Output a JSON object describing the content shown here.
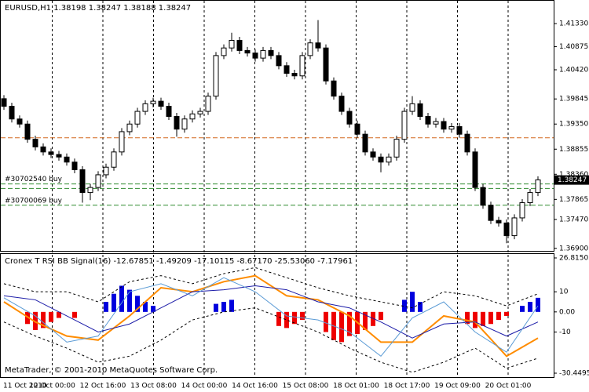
{
  "chart_data": [
    {
      "type": "candlestick",
      "title": "EURUSD,H1  1.38198 1.38247 1.38188 1.38247",
      "open": [
        1.3985,
        1.397,
        1.3945,
        1.3935,
        1.3905,
        1.389,
        1.388,
        1.3875,
        1.387,
        1.386,
        1.3845,
        1.38,
        1.381,
        1.3835,
        1.385,
        1.388,
        1.392,
        1.3935,
        1.396,
        1.3975,
        1.398,
        1.397,
        1.395,
        1.3925,
        1.3945,
        1.3955,
        1.396,
        1.399,
        1.407,
        1.4085,
        1.41,
        1.408,
        1.4075,
        1.4065,
        1.408,
        1.407,
        1.405,
        1.4035,
        1.403,
        1.407,
        1.4095,
        1.4085,
        1.402,
        1.399,
        1.396,
        1.3935,
        1.3915,
        1.388,
        1.387,
        1.386,
        1.387,
        1.3905,
        1.396,
        1.3975,
        1.395,
        1.3935,
        1.394,
        1.3925,
        1.393,
        1.3915,
        1.388,
        1.381,
        1.3775,
        1.3745,
        1.374,
        1.3715,
        1.375,
        1.378,
        1.38
      ],
      "high": [
        1.3992,
        1.3977,
        1.3952,
        1.3942,
        1.3912,
        1.3897,
        1.3887,
        1.3882,
        1.3877,
        1.3867,
        1.3852,
        1.3817,
        1.3842,
        1.3857,
        1.3887,
        1.3927,
        1.3942,
        1.3967,
        1.3982,
        1.3987,
        1.3987,
        1.3977,
        1.3957,
        1.3952,
        1.3962,
        1.3967,
        1.3997,
        1.4077,
        1.4092,
        1.4115,
        1.4107,
        1.4087,
        1.4082,
        1.4087,
        1.4087,
        1.4077,
        1.4057,
        1.4042,
        1.4077,
        1.4102,
        1.414,
        1.4092,
        1.4027,
        1.3997,
        1.3967,
        1.3942,
        1.3922,
        1.3887,
        1.3877,
        1.3877,
        1.3912,
        1.3967,
        1.399,
        1.3982,
        1.3957,
        1.3947,
        1.3947,
        1.3937,
        1.3937,
        1.3922,
        1.3887,
        1.3817,
        1.3782,
        1.3752,
        1.3747,
        1.3757,
        1.3787,
        1.3807,
        1.3832
      ],
      "low": [
        1.3963,
        1.3938,
        1.3928,
        1.3898,
        1.3883,
        1.3873,
        1.3868,
        1.3863,
        1.3853,
        1.3838,
        1.378,
        1.3785,
        1.3803,
        1.3828,
        1.3843,
        1.3873,
        1.3913,
        1.3928,
        1.3953,
        1.3968,
        1.3963,
        1.3943,
        1.391,
        1.3918,
        1.3938,
        1.3948,
        1.3953,
        1.3983,
        1.4063,
        1.4078,
        1.4073,
        1.4068,
        1.4058,
        1.4058,
        1.4063,
        1.4043,
        1.4028,
        1.4023,
        1.4023,
        1.4063,
        1.4078,
        1.4013,
        1.3983,
        1.3953,
        1.3928,
        1.3908,
        1.3873,
        1.3863,
        1.384,
        1.3853,
        1.3863,
        1.3898,
        1.3953,
        1.3943,
        1.3928,
        1.3928,
        1.3918,
        1.3918,
        1.3908,
        1.3873,
        1.3803,
        1.3768,
        1.3738,
        1.3733,
        1.37,
        1.3708,
        1.3743,
        1.3773,
        1.3793
      ],
      "close": [
        1.397,
        1.3945,
        1.3935,
        1.3905,
        1.389,
        1.388,
        1.3875,
        1.387,
        1.386,
        1.3845,
        1.38,
        1.381,
        1.3835,
        1.385,
        1.388,
        1.392,
        1.3935,
        1.396,
        1.3975,
        1.398,
        1.397,
        1.395,
        1.3925,
        1.3945,
        1.3955,
        1.396,
        1.399,
        1.407,
        1.4085,
        1.41,
        1.408,
        1.4075,
        1.4065,
        1.408,
        1.407,
        1.405,
        1.4035,
        1.403,
        1.407,
        1.4095,
        1.4085,
        1.402,
        1.399,
        1.396,
        1.3935,
        1.3915,
        1.388,
        1.387,
        1.386,
        1.387,
        1.3905,
        1.396,
        1.3975,
        1.395,
        1.3935,
        1.394,
        1.3925,
        1.393,
        1.3915,
        1.388,
        1.381,
        1.3775,
        1.3745,
        1.374,
        1.3715,
        1.375,
        1.378,
        1.38,
        1.3825
      ],
      "ylim": [
        1.3685,
        1.4178
      ],
      "yticks": [
        {
          "value": 1.4133,
          "label": "1.41330"
        },
        {
          "value": 1.40875,
          "label": "1.40875"
        },
        {
          "value": 1.4042,
          "label": "1.40420"
        },
        {
          "value": 1.39845,
          "label": "1.39845"
        },
        {
          "value": 1.3935,
          "label": "1.39350"
        },
        {
          "value": 1.38855,
          "label": "1.38855"
        },
        {
          "value": 1.3836,
          "label": "1.38360"
        },
        {
          "value": 1.37865,
          "label": "1.37865"
        },
        {
          "value": 1.3747,
          "label": "1.37470"
        },
        {
          "value": 1.369,
          "label": "1.36900"
        }
      ],
      "current_price": {
        "value": 1.38247,
        "label": "1.38247"
      },
      "level_lines": [
        {
          "price": 1.3908,
          "color": "#d2691e"
        },
        {
          "price": 1.3817,
          "color": "#2e8b2e",
          "label": "#30702540 buy"
        },
        {
          "price": 1.3808,
          "color": "#2e8b2e"
        },
        {
          "price": 1.3775,
          "color": "#2e8b2e",
          "label": "#30700069 buy"
        }
      ],
      "time_labels": [
        "11 Oct 2010",
        "12 Oct 00:00",
        "12 Oct 16:00",
        "13 Oct 08:00",
        "14 Oct 00:00",
        "14 Oct 16:00",
        "15 Oct 08:00",
        "18 Oct 01:00",
        "18 Oct 17:00",
        "19 Oct 09:00",
        "20 Oct 01:00"
      ]
    },
    {
      "type": "indicator",
      "title": "Cronex T RSI BB Signal(16) -12.67851 -1.49209 -17.10115 -8.67170 -25.53060 -7.17961",
      "histogram": [
        null,
        null,
        null,
        -6,
        -9,
        -8,
        -5,
        -3,
        null,
        -3,
        null,
        null,
        null,
        5,
        9,
        13,
        11,
        8,
        5,
        3,
        null,
        null,
        null,
        null,
        null,
        null,
        null,
        4,
        5,
        6,
        null,
        null,
        null,
        null,
        null,
        -7,
        -8,
        -6,
        -4,
        null,
        null,
        -10,
        -14,
        -15,
        -12,
        -11,
        -9,
        -7,
        -4,
        null,
        null,
        6,
        10,
        5,
        null,
        null,
        null,
        null,
        null,
        -6,
        -8,
        -7,
        -6,
        -4,
        -2,
        null,
        3,
        5,
        7
      ],
      "positive_color": "#0000dd",
      "negative_color": "#ee0000",
      "series": [
        {
          "color": "#ff8c00",
          "width": 2,
          "dash": false,
          "values": [
            5,
            -5,
            -12,
            -14,
            -2,
            12,
            10,
            15,
            18,
            8,
            6,
            -2,
            -15,
            -15,
            -2,
            -5,
            -22,
            -13
          ]
        },
        {
          "color": "#1c1ca8",
          "width": 1,
          "dash": false,
          "values": [
            8,
            6,
            -2,
            -10,
            -6,
            2,
            10,
            11,
            13,
            11,
            5,
            2,
            -5,
            -13,
            -6,
            -5,
            -12,
            -5
          ]
        },
        {
          "color": "#5b9bd5",
          "width": 1,
          "dash": false,
          "values": [
            7,
            -2,
            -15,
            -12,
            10,
            14,
            8,
            17,
            10,
            -2,
            -4,
            -10,
            -22,
            -3,
            5,
            -10,
            -20,
            3
          ]
        },
        {
          "color": "#000000",
          "width": 1,
          "dash": true,
          "values": [
            14,
            10,
            10,
            5,
            15,
            18,
            14,
            19,
            22,
            17,
            12,
            8,
            5,
            2,
            10,
            8,
            3,
            9
          ]
        },
        {
          "color": "#000000",
          "width": 1,
          "dash": true,
          "values": [
            -5,
            -12,
            -18,
            -25,
            -22,
            -14,
            -4,
            0,
            2,
            -4,
            -10,
            -18,
            -25,
            -30,
            -25,
            -18,
            -28,
            -23
          ]
        }
      ],
      "ylim": [
        -30.44958,
        26.81503
      ],
      "yticks": [
        26.81503,
        10,
        {
          "value": 0,
          "label": "0.00"
        },
        -10,
        -30.44958
      ],
      "footer": "MetaTrader, © 2001-2010 MetaQuotes Software Corp."
    }
  ]
}
